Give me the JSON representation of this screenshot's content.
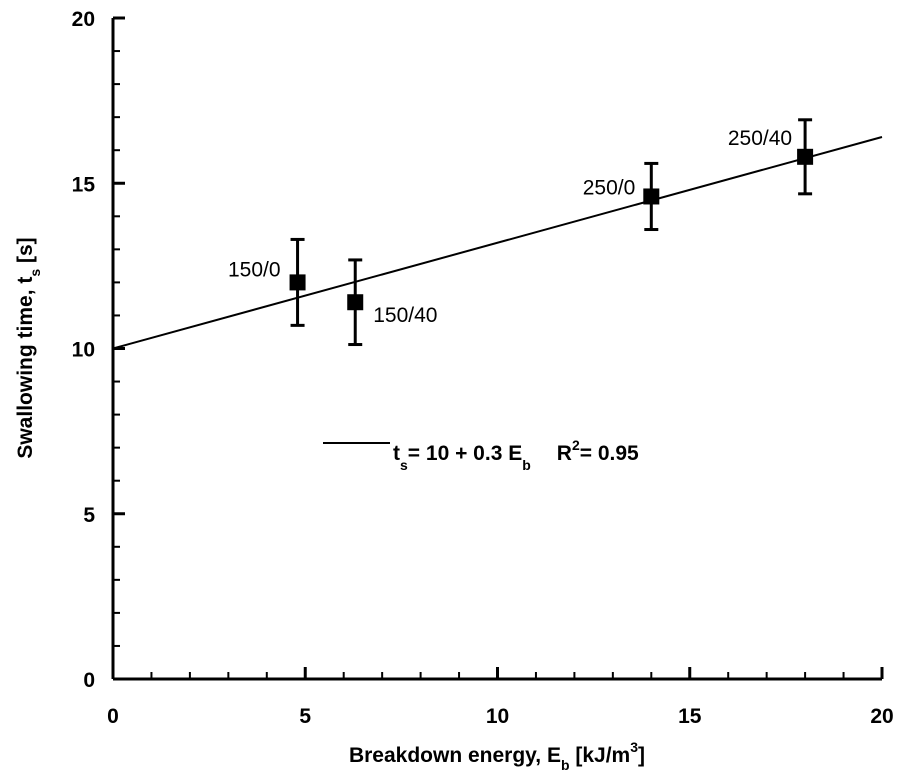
{
  "chart_data": {
    "type": "scatter",
    "x_label": [
      "Breakdown energy, E",
      "b",
      " [kJ/m",
      "3",
      "]"
    ],
    "y_label": [
      "Swallowing time, t",
      "s",
      " [s]"
    ],
    "xlim": [
      0,
      20
    ],
    "ylim": [
      0,
      20
    ],
    "xticks": [
      0,
      5,
      10,
      15,
      20
    ],
    "yticks": [
      0,
      5,
      10,
      15,
      20
    ],
    "xminorticks": [
      1,
      2,
      3,
      4,
      6,
      7,
      8,
      9,
      11,
      12,
      13,
      14,
      16,
      17,
      18,
      19
    ],
    "yminorticks": [
      1,
      2,
      3,
      4,
      6,
      7,
      8,
      9,
      11,
      12,
      13,
      14,
      16,
      17,
      18,
      19
    ],
    "color": "#000000",
    "x": [
      4.8,
      6.3,
      14.0,
      18.0
    ],
    "values": [
      12.0,
      11.4,
      14.6,
      15.8
    ],
    "errors": [
      1.3,
      1.28,
      1.0,
      1.12
    ],
    "point_labels": [
      "150/0",
      "150/40",
      "250/0",
      "250/40"
    ],
    "fit": {
      "x": [
        0,
        20
      ],
      "y": [
        10,
        16.4
      ]
    },
    "legend": [
      "t",
      "s",
      "= 10 + 0.3 E",
      "b",
      "R",
      "2",
      "= 0.95"
    ]
  }
}
